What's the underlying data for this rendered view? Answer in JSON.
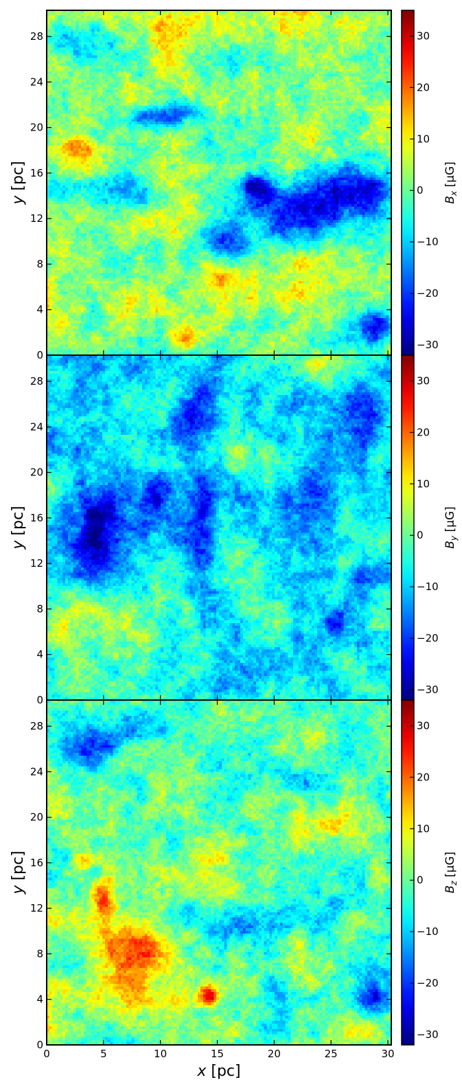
{
  "chart_data": {
    "type": "heatmap",
    "colormap": "jet",
    "grid": false,
    "xlabel": "x [pc]",
    "x_ticks": [
      0,
      5,
      10,
      15,
      20,
      25,
      30
    ],
    "xlim": [
      0,
      30.3
    ],
    "y_ticks": [
      0,
      4,
      8,
      12,
      16,
      20,
      24,
      28
    ],
    "ylim": [
      0,
      30.3
    ],
    "ylabel": "y [pc]",
    "colorbar_ticks": [
      -30,
      -20,
      -10,
      0,
      10,
      20,
      30
    ],
    "clim": [
      -32,
      35
    ],
    "panels": [
      {
        "colorbar_label": "B_x [μG]",
        "label_main": "B",
        "label_sub": "x",
        "label_unit": "[μG]",
        "mean": 1.5,
        "features": [
          {
            "x": 22,
            "y": 12,
            "sx": 3.2,
            "sy": 1.6,
            "value": -27
          },
          {
            "x": 27.5,
            "y": 14.5,
            "sx": 2.5,
            "sy": 1.5,
            "value": -26
          },
          {
            "x": 18.5,
            "y": 14.8,
            "sx": 1.2,
            "sy": 1.0,
            "value": -21
          },
          {
            "x": 10.5,
            "y": 21,
            "sx": 2.5,
            "sy": 0.8,
            "value": -18
          },
          {
            "x": 29,
            "y": 2.5,
            "sx": 1.2,
            "sy": 1.2,
            "value": -22
          },
          {
            "x": 4,
            "y": 14.5,
            "sx": 4.0,
            "sy": 1.0,
            "value": -11
          },
          {
            "x": 3,
            "y": 27.5,
            "sx": 2.0,
            "sy": 1.0,
            "value": -14
          },
          {
            "x": 16,
            "y": 9.5,
            "sx": 1.5,
            "sy": 1.0,
            "value": -17
          },
          {
            "x": 12,
            "y": 1.5,
            "sx": 1.0,
            "sy": 0.8,
            "value": 19
          },
          {
            "x": 3,
            "y": 18.2,
            "sx": 1.2,
            "sy": 0.8,
            "value": 17
          },
          {
            "x": 10,
            "y": 29,
            "sx": 6.0,
            "sy": 1.2,
            "value": 12
          },
          {
            "x": 8,
            "y": 5,
            "sx": 8.0,
            "sy": 2.0,
            "value": 7
          },
          {
            "x": 20,
            "y": 7.0,
            "sx": 5.0,
            "sy": 2.0,
            "value": 7
          }
        ]
      },
      {
        "colorbar_label": "B_y [μG]",
        "label_main": "B",
        "label_sub": "y",
        "label_unit": "[μG]",
        "mean": -6,
        "features": [
          {
            "x": 4.5,
            "y": 15.5,
            "sx": 1.8,
            "sy": 3.0,
            "value": -27
          },
          {
            "x": 13.5,
            "y": 14.5,
            "sx": 1.5,
            "sy": 3.2,
            "value": -26
          },
          {
            "x": 9.5,
            "y": 17.5,
            "sx": 1.2,
            "sy": 1.6,
            "value": -22
          },
          {
            "x": 13,
            "y": 24.5,
            "sx": 1.5,
            "sy": 3.0,
            "value": -23
          },
          {
            "x": 11,
            "y": 5,
            "sx": 1.2,
            "sy": 2.0,
            "value": -20
          },
          {
            "x": 25.5,
            "y": 6.5,
            "sx": 0.8,
            "sy": 1.2,
            "value": -22
          },
          {
            "x": 27.8,
            "y": 24.5,
            "sx": 1.0,
            "sy": 2.0,
            "value": -21
          },
          {
            "x": 24,
            "y": 18.5,
            "sx": 1.2,
            "sy": 2.0,
            "value": -17
          },
          {
            "x": 27.5,
            "y": 10,
            "sx": 0.8,
            "sy": 1.5,
            "value": -17
          },
          {
            "x": 23.5,
            "y": 29,
            "sx": 1.5,
            "sy": 1.0,
            "value": 9
          },
          {
            "x": 16,
            "y": 21.5,
            "sx": 3.0,
            "sy": 1.5,
            "value": 6
          },
          {
            "x": 8,
            "y": 6,
            "sx": 3.0,
            "sy": 2.0,
            "value": 4
          },
          {
            "x": 1.5,
            "y": 5,
            "sx": 1.5,
            "sy": 3.5,
            "value": 3
          }
        ]
      },
      {
        "colorbar_label": "B_z [μG]",
        "label_main": "B",
        "label_sub": "z",
        "label_unit": "[μG]",
        "mean": 0,
        "features": [
          {
            "x": 8,
            "y": 8.3,
            "sx": 2.0,
            "sy": 1.5,
            "value": 24
          },
          {
            "x": 14.3,
            "y": 4.3,
            "sx": 0.7,
            "sy": 0.7,
            "value": 26
          },
          {
            "x": 5,
            "y": 13,
            "sx": 0.7,
            "sy": 1.5,
            "value": 18
          },
          {
            "x": 3.5,
            "y": 16.2,
            "sx": 0.8,
            "sy": 0.5,
            "value": 19
          },
          {
            "x": 25,
            "y": 19.5,
            "sx": 2.5,
            "sy": 1.5,
            "value": 10
          },
          {
            "x": 28,
            "y": 1.5,
            "sx": 1.5,
            "sy": 1.0,
            "value": 14
          },
          {
            "x": 6,
            "y": 6,
            "sx": 4.0,
            "sy": 3.0,
            "value": 9
          },
          {
            "x": 3,
            "y": 26,
            "sx": 2.2,
            "sy": 1.2,
            "value": -20
          },
          {
            "x": 8,
            "y": 27.5,
            "sx": 2.0,
            "sy": 1.0,
            "value": -12
          },
          {
            "x": 18,
            "y": 10.5,
            "sx": 2.5,
            "sy": 1.2,
            "value": -16
          },
          {
            "x": 24,
            "y": 11.5,
            "sx": 2.0,
            "sy": 1.5,
            "value": -11
          },
          {
            "x": 28.5,
            "y": 4.5,
            "sx": 1.0,
            "sy": 1.5,
            "value": -16
          },
          {
            "x": 20,
            "y": 23.5,
            "sx": 3.0,
            "sy": 1.5,
            "value": -8
          },
          {
            "x": 20,
            "y": 5,
            "sx": 1.0,
            "sy": 2.5,
            "value": -11
          }
        ]
      }
    ]
  }
}
